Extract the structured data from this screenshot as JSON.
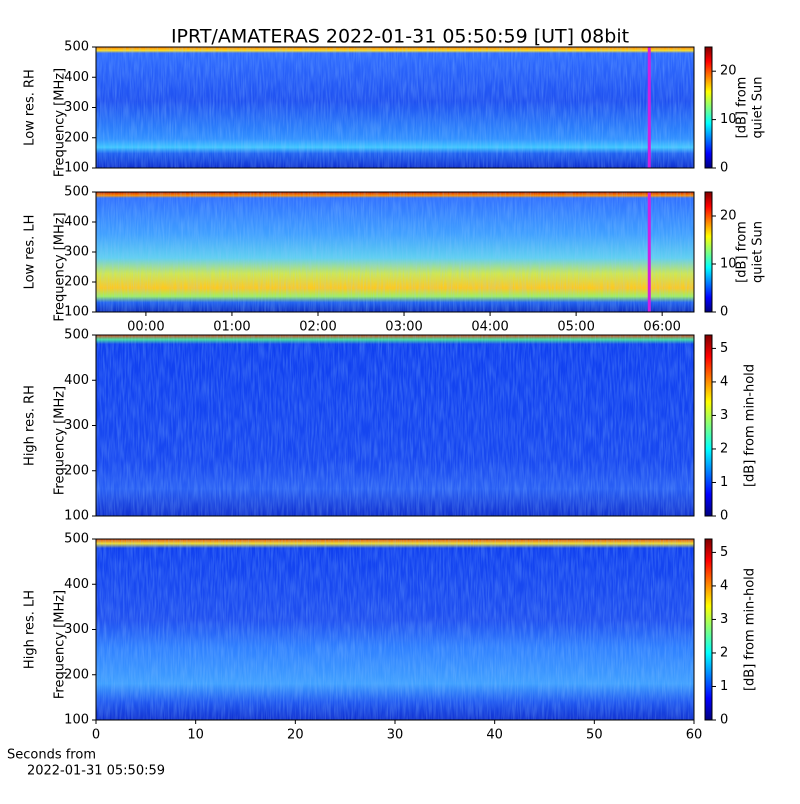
{
  "chart_data": [
    {
      "type": "heatmap",
      "title": "IPRT/AMATERAS 2022-01-31 05:50:59 [UT]   08bit",
      "ylabel": [
        "Low res. RH",
        "Frequency [MHz]"
      ],
      "ylim": [
        100,
        500
      ],
      "yticks": [
        100,
        200,
        300,
        400,
        500
      ],
      "xlim": [
        -0.58,
        6.37
      ],
      "marker_x": 5.85,
      "marker_color": "#d020e0",
      "colorbar_label": [
        "[dB] from",
        "quiet Sun"
      ],
      "clim": [
        0,
        25
      ],
      "cticks": [
        0,
        10,
        20
      ]
    },
    {
      "type": "heatmap",
      "ylabel": [
        "Low res. LH",
        "Frequency [MHz]"
      ],
      "ylim": [
        100,
        500
      ],
      "yticks": [
        100,
        200,
        300,
        400,
        500
      ],
      "xlim": [
        -0.58,
        6.37
      ],
      "xticks": [
        {
          "value": 0,
          "label": "00:00"
        },
        {
          "value": 1,
          "label": "01:00"
        },
        {
          "value": 2,
          "label": "02:00"
        },
        {
          "value": 3,
          "label": "03:00"
        },
        {
          "value": 4,
          "label": "04:00"
        },
        {
          "value": 5,
          "label": "05:00"
        },
        {
          "value": 6,
          "label": "06:00"
        }
      ],
      "marker_x": 5.85,
      "marker_color": "#d020e0",
      "colorbar_label": [
        "[dB] from",
        "quiet Sun"
      ],
      "clim": [
        0,
        25
      ],
      "cticks": [
        0,
        10,
        20
      ]
    },
    {
      "type": "heatmap",
      "ylabel": [
        "High res. RH",
        "Frequency [MHz]"
      ],
      "ylim": [
        100,
        500
      ],
      "yticks": [
        100,
        200,
        300,
        400,
        500
      ],
      "xlim": [
        0,
        60
      ],
      "colorbar_label": [
        "[dB] from min-hold"
      ],
      "clim": [
        0,
        5.4
      ],
      "cticks": [
        0,
        1,
        2,
        3,
        4,
        5
      ]
    },
    {
      "type": "heatmap",
      "ylabel": [
        "High res. LH",
        "Frequency [MHz]"
      ],
      "ylim": [
        100,
        500
      ],
      "yticks": [
        100,
        200,
        300,
        400,
        500
      ],
      "xlim": [
        0,
        60
      ],
      "xticks": [
        0,
        10,
        20,
        30,
        40,
        50,
        60
      ],
      "xlabel": [
        "Seconds from",
        "2022-01-31 05:50:59"
      ],
      "colorbar_label": [
        "[dB] from min-hold"
      ],
      "clim": [
        0,
        5.4
      ],
      "cticks": [
        0,
        1,
        2,
        3,
        4,
        5
      ]
    }
  ]
}
